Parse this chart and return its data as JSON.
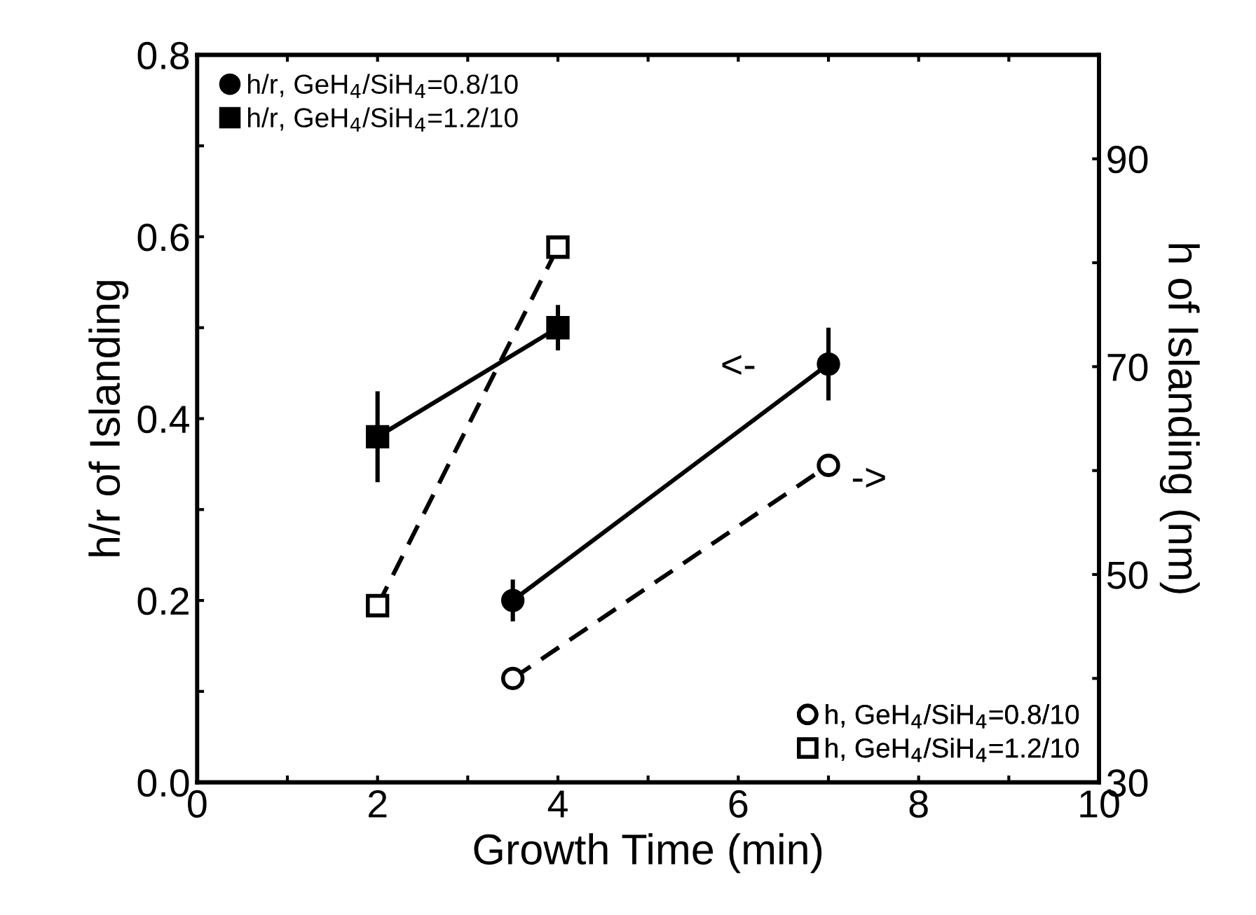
{
  "chart_data": {
    "type": "line",
    "xlabel": "Growth Time (min)",
    "ylabel": "h/r of Islanding",
    "y2label": "h of Islanding (nm)",
    "xlim": [
      0,
      10
    ],
    "xticks": [
      0,
      {
        "value": 1,
        "label": null
      },
      2,
      {
        "value": 3,
        "label": null
      },
      4,
      {
        "value": 5,
        "label": null
      },
      6,
      {
        "value": 7,
        "label": null
      },
      8,
      {
        "value": 9,
        "label": null
      },
      10
    ],
    "ylim": [
      0,
      0.8
    ],
    "yticks": [
      {
        "value": 0,
        "label": "0.0"
      },
      {
        "value": 0.1,
        "label": null
      },
      {
        "value": 0.2,
        "label": "0.2"
      },
      {
        "value": 0.3,
        "label": null
      },
      {
        "value": 0.4,
        "label": "0.4"
      },
      {
        "value": 0.5,
        "label": null
      },
      {
        "value": 0.6,
        "label": "0.6"
      },
      {
        "value": 0.7,
        "label": null
      },
      {
        "value": 0.8,
        "label": "0.8"
      }
    ],
    "y2lim": [
      30,
      100
    ],
    "y2ticks": [
      30,
      {
        "value": 40,
        "label": null
      },
      50,
      {
        "value": 60,
        "label": null
      },
      70,
      {
        "value": 80,
        "label": null
      },
      90
    ],
    "legend": "top left",
    "grid": false,
    "series": [
      {
        "name": "h/r, GeH$_{4}$/SiH$_{4}$=0.8/10",
        "color": "#000000",
        "marker": "circle",
        "line_style": "solid",
        "x": [
          3.5,
          7
        ],
        "values": [
          0.2,
          0.46
        ],
        "errors": [
          0.023,
          0.04
        ]
      },
      {
        "name": "h/r, GeH$_{4}$/SiH$_{4}$=1.2/10",
        "color": "#000000",
        "marker": "square",
        "line_style": "solid",
        "x": [
          2,
          4
        ],
        "values": [
          0.38,
          0.5
        ],
        "errors": [
          0.05,
          0.025
        ]
      },
      {
        "name": "h, GeH$_{4}$/SiH$_{4}$=0.8/10",
        "color": "#000000",
        "marker": "circle",
        "line_style": "dashed",
        "axis": "y2",
        "x": [
          3.5,
          7
        ],
        "values": [
          40,
          60.5
        ]
      },
      {
        "name": "h, GeH$_{4}$/SiH$_{4}$=1.2/10",
        "color": "#000000",
        "marker": "square",
        "line_style": "dashed",
        "axis": "y2",
        "x": [
          2,
          4
        ],
        "values": [
          47,
          81.5
        ]
      }
    ],
    "annotations": [
      "<-",
      "->"
    ]
  }
}
